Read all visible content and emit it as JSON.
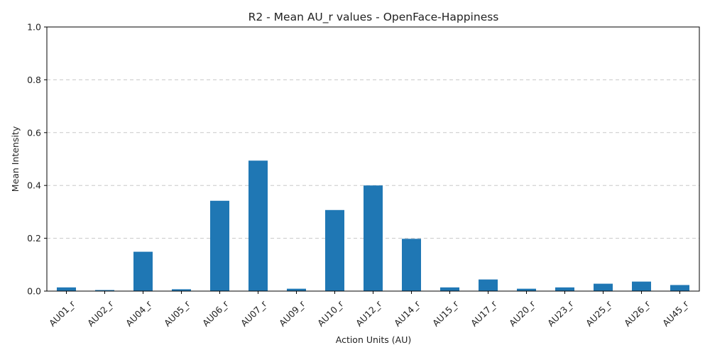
{
  "chart_data": {
    "type": "bar",
    "title": "R2 - Mean AU_r values - OpenFace-Happiness",
    "xlabel": "Action Units (AU)",
    "ylabel": "Mean Intensity",
    "categories": [
      "AU01_r",
      "AU02_r",
      "AU04_r",
      "AU05_r",
      "AU06_r",
      "AU07_r",
      "AU09_r",
      "AU10_r",
      "AU12_r",
      "AU14_r",
      "AU15_r",
      "AU17_r",
      "AU20_r",
      "AU23_r",
      "AU25_r",
      "AU26_r",
      "AU45_r"
    ],
    "values": [
      0.014,
      0.004,
      0.149,
      0.007,
      0.342,
      0.494,
      0.009,
      0.307,
      0.4,
      0.198,
      0.014,
      0.044,
      0.009,
      0.014,
      0.028,
      0.036,
      0.023
    ],
    "ylim": [
      0,
      1.0
    ],
    "yticks": [
      "0.0",
      "0.2",
      "0.4",
      "0.6",
      "0.8",
      "1.0"
    ],
    "grid": "y-dashed",
    "bar_color": "#1f77b4"
  }
}
